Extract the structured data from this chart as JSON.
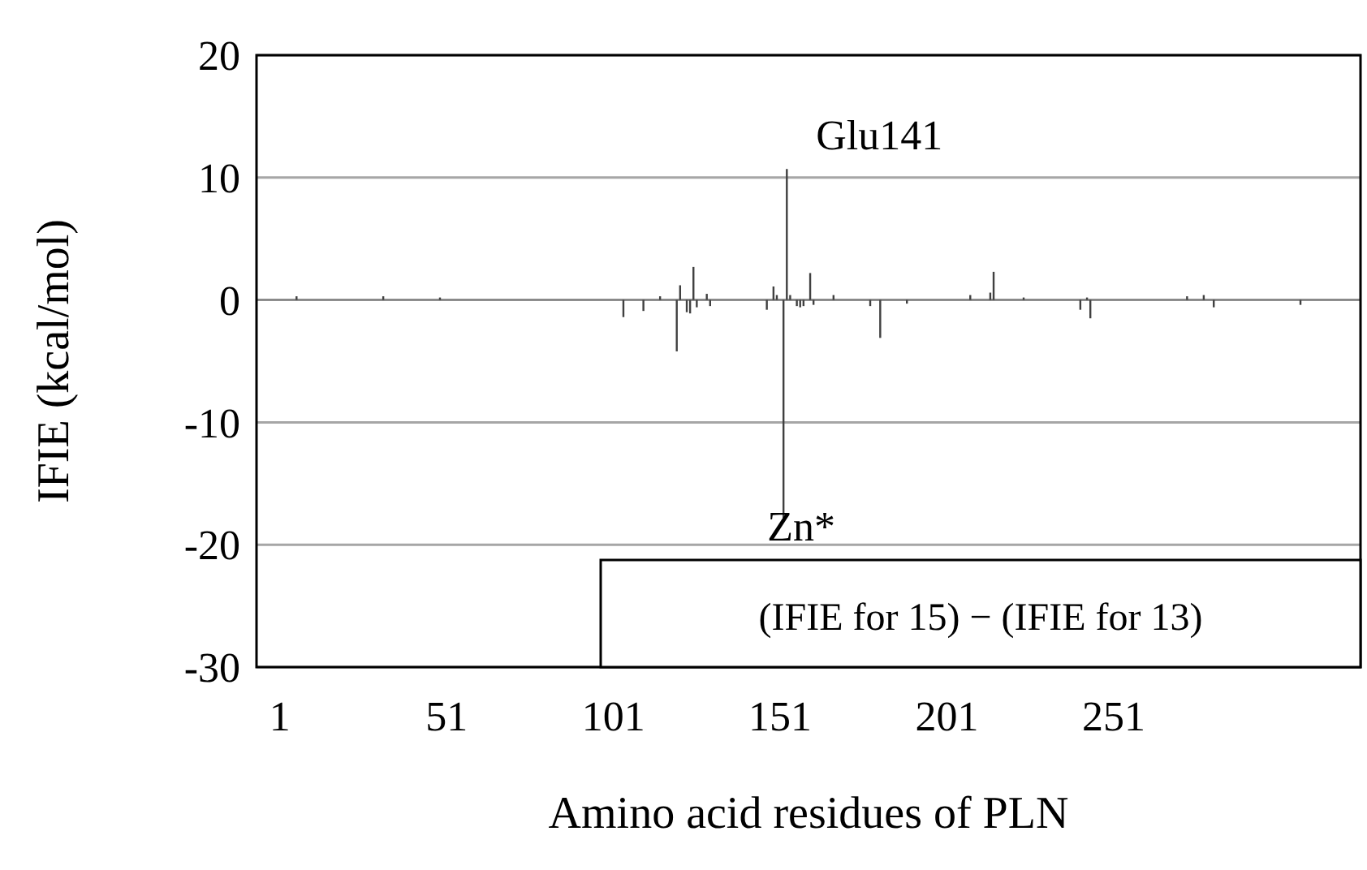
{
  "chart_data": {
    "type": "bar",
    "xlabel": "Amino acid residues of PLN",
    "ylabel": "IFIE (kcal/mol)",
    "x": [
      6,
      32,
      49,
      104,
      110,
      115,
      120,
      121,
      123,
      124,
      125,
      126,
      129,
      130,
      147,
      149,
      150,
      152,
      153,
      154,
      156,
      157,
      158,
      160,
      161,
      167,
      178,
      181,
      189,
      208,
      214,
      215,
      224,
      241,
      243,
      244,
      273,
      278,
      281,
      307
    ],
    "series": [
      {
        "color": "#404040",
        "values": [
          0.3,
          0.3,
          0.2,
          -1.4,
          -0.9,
          0.3,
          -4.2,
          1.2,
          -1.0,
          -1.1,
          2.7,
          -0.6,
          0.5,
          -0.5,
          -0.8,
          1.1,
          0.4,
          -17.8,
          10.7,
          0.4,
          -0.5,
          -0.6,
          -0.5,
          2.2,
          -0.4,
          0.4,
          -0.5,
          -3.1,
          -0.3,
          0.4,
          0.6,
          2.3,
          0.2,
          -0.8,
          0.2,
          -1.5,
          0.3,
          0.4,
          -0.6,
          -0.4
        ]
      }
    ],
    "xlim": [
      -6,
      325
    ],
    "xticks": [
      1,
      51,
      101,
      151,
      201,
      251
    ],
    "ylim": [
      -30,
      20
    ],
    "yticks": [
      -30,
      -20,
      -10,
      0,
      10,
      20
    ],
    "grid": "y",
    "annotations": [
      {
        "text": "Glu141",
        "x": 153,
        "y": 10.7
      },
      {
        "text": "Zn*",
        "x": 152,
        "y": -17.8
      },
      "(IFIE for 15) − (IFIE for 13)"
    ]
  }
}
